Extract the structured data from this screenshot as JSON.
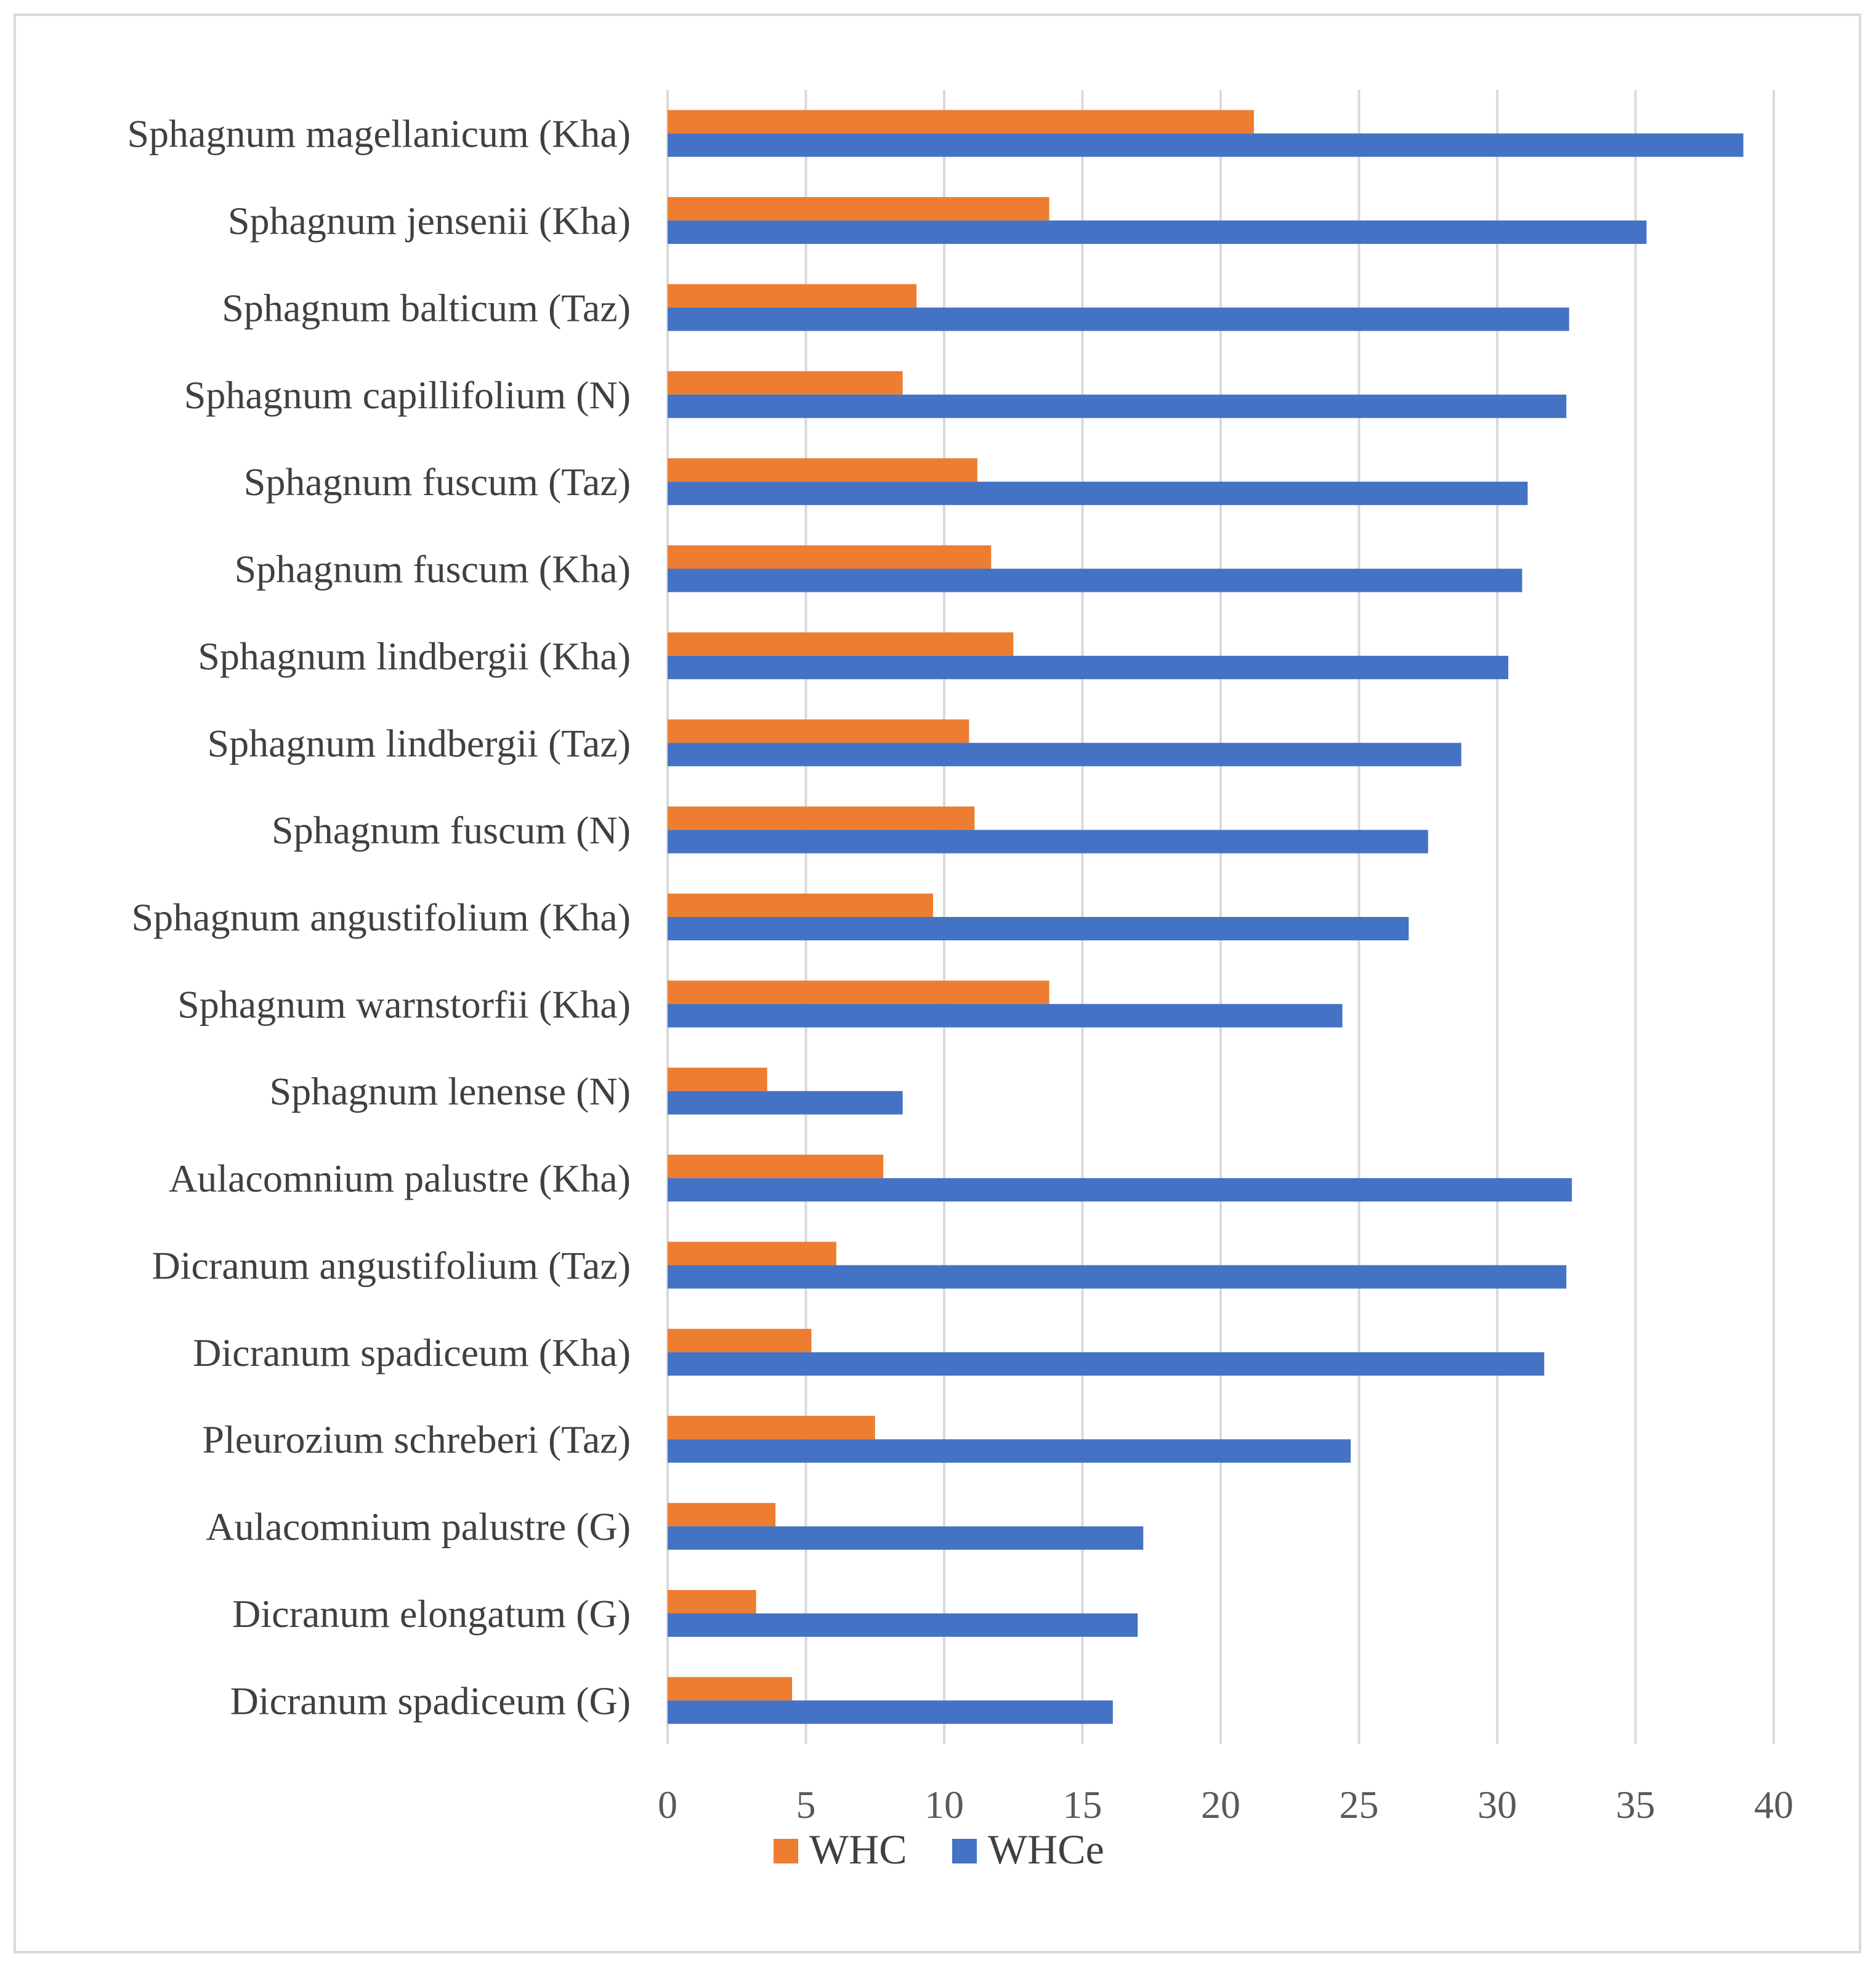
{
  "chart_data": {
    "type": "bar",
    "orientation": "horizontal",
    "title": "",
    "xlabel": "",
    "ylabel": "",
    "xlim": [
      0,
      40
    ],
    "x_ticks": [
      0,
      5,
      10,
      15,
      20,
      25,
      30,
      35,
      40
    ],
    "grid": "vertical",
    "legend_position": "bottom",
    "categories": [
      "Sphagnum magellanicum (Kha)",
      "Sphagnum jensenii (Kha)",
      "Sphagnum balticum (Taz)",
      "Sphagnum capillifolium (N)",
      "Sphagnum fuscum (Taz)",
      "Sphagnum fuscum (Kha)",
      "Sphagnum lindbergii (Kha)",
      "Sphagnum lindbergii (Taz)",
      "Sphagnum fuscum (N)",
      "Sphagnum angustifolium (Kha)",
      "Sphagnum warnstorfii (Kha)",
      "Sphagnum lenense (N)",
      "Aulacomnium palustre (Kha)",
      "Dicranum angustifolium (Taz)",
      "Dicranum spadiceum (Kha)",
      "Pleurozium schreberi (Taz)",
      "Aulacomnium palustre (G)",
      "Dicranum elongatum (G)",
      "Dicranum spadiceum (G)"
    ],
    "series": [
      {
        "name": "WHC",
        "color": "#ed7d31",
        "values": [
          21.2,
          13.8,
          9.0,
          8.5,
          11.2,
          11.7,
          12.5,
          10.9,
          11.1,
          9.6,
          13.8,
          3.6,
          7.8,
          6.1,
          5.2,
          7.5,
          3.9,
          3.2,
          4.5
        ]
      },
      {
        "name": "WHCe",
        "color": "#4472c4",
        "values": [
          38.9,
          35.4,
          32.6,
          32.5,
          31.1,
          30.9,
          30.4,
          28.7,
          27.5,
          26.8,
          24.4,
          8.5,
          32.7,
          32.5,
          31.7,
          24.7,
          17.2,
          17.0,
          16.1
        ]
      }
    ]
  }
}
